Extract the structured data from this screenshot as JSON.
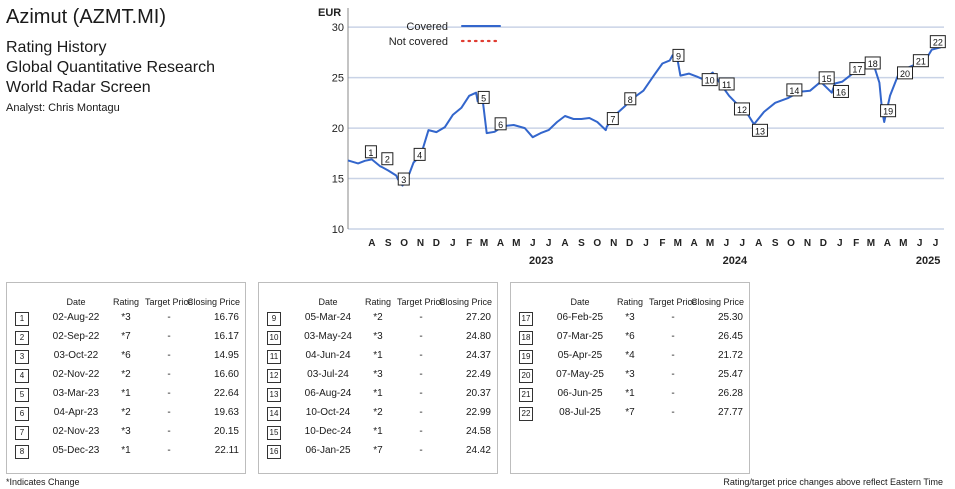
{
  "header": {
    "title": "Azimut (AZMT.MI)",
    "line1": "Rating History",
    "line2": "Global Quantitative Research",
    "line3": "World Radar Screen",
    "analyst": "Analyst: Chris Montagu"
  },
  "chart_data": {
    "type": "line",
    "ylabel": "EUR",
    "ylim": [
      10,
      31.5
    ],
    "yticks": [
      10,
      15,
      20,
      25,
      30
    ],
    "x_start": "2022-07-01",
    "x_end": "2025-07-31",
    "month_labels": [
      "A",
      "S",
      "O",
      "N",
      "D",
      "J",
      "F",
      "M",
      "A",
      "M",
      "J",
      "J",
      "A",
      "S",
      "O",
      "N",
      "D",
      "J",
      "F",
      "M",
      "A",
      "M",
      "J",
      "J",
      "A",
      "S",
      "O",
      "N",
      "D",
      "J",
      "F",
      "M",
      "A",
      "M",
      "J",
      "J"
    ],
    "year_labels": [
      "2023",
      "2024",
      "2025"
    ],
    "legend": [
      {
        "name": "Covered",
        "color": "#3366cc",
        "style": "solid"
      },
      {
        "name": "Not covered",
        "color": "#e03c31",
        "style": "dotted"
      }
    ],
    "grid": "horizontal",
    "series": [
      {
        "name": "Covered",
        "color": "#3366cc",
        "points": [
          [
            "2022-07-01",
            16.8
          ],
          [
            "2022-07-20",
            16.5
          ],
          [
            "2022-08-02",
            16.76
          ],
          [
            "2022-08-15",
            16.9
          ],
          [
            "2022-08-31",
            16.2
          ],
          [
            "2022-09-02",
            16.17
          ],
          [
            "2022-09-15",
            15.8
          ],
          [
            "2022-09-30",
            15.3
          ],
          [
            "2022-10-03",
            14.95
          ],
          [
            "2022-10-12",
            14.3
          ],
          [
            "2022-10-25",
            15.5
          ],
          [
            "2022-11-02",
            16.6
          ],
          [
            "2022-11-15",
            17.2
          ],
          [
            "2022-11-30",
            19.8
          ],
          [
            "2022-12-15",
            19.6
          ],
          [
            "2022-12-31",
            20.1
          ],
          [
            "2023-01-15",
            21.3
          ],
          [
            "2023-01-31",
            22.0
          ],
          [
            "2023-02-15",
            23.2
          ],
          [
            "2023-02-28",
            23.5
          ],
          [
            "2023-03-03",
            22.64
          ],
          [
            "2023-03-12",
            23.0
          ],
          [
            "2023-03-20",
            19.5
          ],
          [
            "2023-04-04",
            19.63
          ],
          [
            "2023-04-20",
            20.2
          ],
          [
            "2023-05-10",
            20.3
          ],
          [
            "2023-05-31",
            20.0
          ],
          [
            "2023-06-15",
            19.1
          ],
          [
            "2023-06-30",
            19.5
          ],
          [
            "2023-07-15",
            19.8
          ],
          [
            "2023-07-31",
            20.6
          ],
          [
            "2023-08-15",
            21.2
          ],
          [
            "2023-08-31",
            20.9
          ],
          [
            "2023-09-15",
            20.9
          ],
          [
            "2023-09-30",
            21.0
          ],
          [
            "2023-10-15",
            20.6
          ],
          [
            "2023-10-31",
            19.8
          ],
          [
            "2023-11-02",
            20.15
          ],
          [
            "2023-11-20",
            21.4
          ],
          [
            "2023-12-05",
            22.11
          ],
          [
            "2023-12-20",
            22.9
          ],
          [
            "2024-01-10",
            23.7
          ],
          [
            "2024-01-31",
            25.3
          ],
          [
            "2024-02-15",
            26.4
          ],
          [
            "2024-02-29",
            26.7
          ],
          [
            "2024-03-05",
            27.2
          ],
          [
            "2024-03-12",
            27.5
          ],
          [
            "2024-03-20",
            25.2
          ],
          [
            "2024-04-05",
            25.4
          ],
          [
            "2024-04-20",
            25.1
          ],
          [
            "2024-05-03",
            24.8
          ],
          [
            "2024-05-20",
            25.5
          ],
          [
            "2024-06-04",
            24.37
          ],
          [
            "2024-06-20",
            23.2
          ],
          [
            "2024-07-03",
            22.49
          ],
          [
            "2024-07-20",
            21.8
          ],
          [
            "2024-08-06",
            20.37
          ],
          [
            "2024-08-25",
            21.6
          ],
          [
            "2024-09-15",
            22.5
          ],
          [
            "2024-10-10",
            22.99
          ],
          [
            "2024-10-31",
            23.6
          ],
          [
            "2024-11-20",
            23.7
          ],
          [
            "2024-12-10",
            24.58
          ],
          [
            "2024-12-31",
            23.5
          ],
          [
            "2025-01-06",
            24.42
          ],
          [
            "2025-01-20",
            24.6
          ],
          [
            "2025-02-06",
            25.3
          ],
          [
            "2025-02-20",
            26.3
          ],
          [
            "2025-03-07",
            26.45
          ],
          [
            "2025-03-20",
            26.3
          ],
          [
            "2025-03-31",
            24.5
          ],
          [
            "2025-04-05",
            21.72
          ],
          [
            "2025-04-09",
            20.6
          ],
          [
            "2025-04-20",
            23.2
          ],
          [
            "2025-05-07",
            25.47
          ],
          [
            "2025-05-20",
            25.9
          ],
          [
            "2025-06-06",
            26.28
          ],
          [
            "2025-06-20",
            26.2
          ],
          [
            "2025-07-08",
            27.77
          ],
          [
            "2025-07-25",
            28.0
          ]
        ]
      }
    ],
    "markers": [
      {
        "n": "1",
        "date": "2022-08-02",
        "price": 16.76,
        "dy": -9
      },
      {
        "n": "2",
        "date": "2022-09-02",
        "price": 16.17,
        "dy": -8
      },
      {
        "n": "3",
        "date": "2022-10-03",
        "price": 14.95,
        "dy": 0
      },
      {
        "n": "4",
        "date": "2022-11-02",
        "price": 16.6,
        "dy": -8
      },
      {
        "n": "5",
        "date": "2023-03-03",
        "price": 22.64,
        "dy": -4
      },
      {
        "n": "6",
        "date": "2023-04-04",
        "price": 19.63,
        "dy": -8
      },
      {
        "n": "7",
        "date": "2023-11-02",
        "price": 20.15,
        "dy": -8
      },
      {
        "n": "8",
        "date": "2023-12-05",
        "price": 22.11,
        "dy": -8
      },
      {
        "n": "9",
        "date": "2024-03-05",
        "price": 27.2,
        "dy": 0
      },
      {
        "n": "10",
        "date": "2024-05-03",
        "price": 24.8,
        "dy": 0
      },
      {
        "n": "11",
        "date": "2024-06-04",
        "price": 24.37,
        "dy": 0
      },
      {
        "n": "12",
        "date": "2024-07-03",
        "price": 22.49,
        "dy": 6
      },
      {
        "n": "13",
        "date": "2024-08-06",
        "price": 20.37,
        "dy": 6
      },
      {
        "n": "14",
        "date": "2024-10-10",
        "price": 22.99,
        "dy": -8
      },
      {
        "n": "15",
        "date": "2024-12-10",
        "price": 24.58,
        "dy": -4
      },
      {
        "n": "16",
        "date": "2025-01-06",
        "price": 24.42,
        "dy": 8
      },
      {
        "n": "17",
        "date": "2025-02-06",
        "price": 25.3,
        "dy": -6
      },
      {
        "n": "18",
        "date": "2025-03-07",
        "price": 26.45,
        "dy": 0
      },
      {
        "n": "19",
        "date": "2025-04-05",
        "price": 21.72,
        "dy": 0
      },
      {
        "n": "20",
        "date": "2025-05-07",
        "price": 25.47,
        "dy": 0
      },
      {
        "n": "21",
        "date": "2025-06-06",
        "price": 26.28,
        "dy": -4
      },
      {
        "n": "22",
        "date": "2025-07-08",
        "price": 27.77,
        "dy": -8
      }
    ]
  },
  "table": {
    "columns": [
      "Date",
      "Rating",
      "Target Price",
      "Closing Price"
    ],
    "rows": [
      {
        "n": "1",
        "date": "02-Aug-22",
        "rating": "*3",
        "target": "-",
        "close": "16.76"
      },
      {
        "n": "2",
        "date": "02-Sep-22",
        "rating": "*7",
        "target": "-",
        "close": "16.17"
      },
      {
        "n": "3",
        "date": "03-Oct-22",
        "rating": "*6",
        "target": "-",
        "close": "14.95"
      },
      {
        "n": "4",
        "date": "02-Nov-22",
        "rating": "*2",
        "target": "-",
        "close": "16.60"
      },
      {
        "n": "5",
        "date": "03-Mar-23",
        "rating": "*1",
        "target": "-",
        "close": "22.64"
      },
      {
        "n": "6",
        "date": "04-Apr-23",
        "rating": "*2",
        "target": "-",
        "close": "19.63"
      },
      {
        "n": "7",
        "date": "02-Nov-23",
        "rating": "*3",
        "target": "-",
        "close": "20.15"
      },
      {
        "n": "8",
        "date": "05-Dec-23",
        "rating": "*1",
        "target": "-",
        "close": "22.11"
      },
      {
        "n": "9",
        "date": "05-Mar-24",
        "rating": "*2",
        "target": "-",
        "close": "27.20"
      },
      {
        "n": "10",
        "date": "03-May-24",
        "rating": "*3",
        "target": "-",
        "close": "24.80"
      },
      {
        "n": "11",
        "date": "04-Jun-24",
        "rating": "*1",
        "target": "-",
        "close": "24.37"
      },
      {
        "n": "12",
        "date": "03-Jul-24",
        "rating": "*3",
        "target": "-",
        "close": "22.49"
      },
      {
        "n": "13",
        "date": "06-Aug-24",
        "rating": "*1",
        "target": "-",
        "close": "20.37"
      },
      {
        "n": "14",
        "date": "10-Oct-24",
        "rating": "*2",
        "target": "-",
        "close": "22.99"
      },
      {
        "n": "15",
        "date": "10-Dec-24",
        "rating": "*1",
        "target": "-",
        "close": "24.58"
      },
      {
        "n": "16",
        "date": "06-Jan-25",
        "rating": "*7",
        "target": "-",
        "close": "24.42"
      },
      {
        "n": "17",
        "date": "06-Feb-25",
        "rating": "*3",
        "target": "-",
        "close": "25.30"
      },
      {
        "n": "18",
        "date": "07-Mar-25",
        "rating": "*6",
        "target": "-",
        "close": "26.45"
      },
      {
        "n": "19",
        "date": "05-Apr-25",
        "rating": "*4",
        "target": "-",
        "close": "21.72"
      },
      {
        "n": "20",
        "date": "07-May-25",
        "rating": "*3",
        "target": "-",
        "close": "25.47"
      },
      {
        "n": "21",
        "date": "06-Jun-25",
        "rating": "*1",
        "target": "-",
        "close": "26.28"
      },
      {
        "n": "22",
        "date": "08-Jul-25",
        "rating": "*7",
        "target": "-",
        "close": "27.77"
      }
    ]
  },
  "footer": {
    "left": "*Indicates Change",
    "right": "Rating/target price changes above reflect Eastern Time"
  }
}
